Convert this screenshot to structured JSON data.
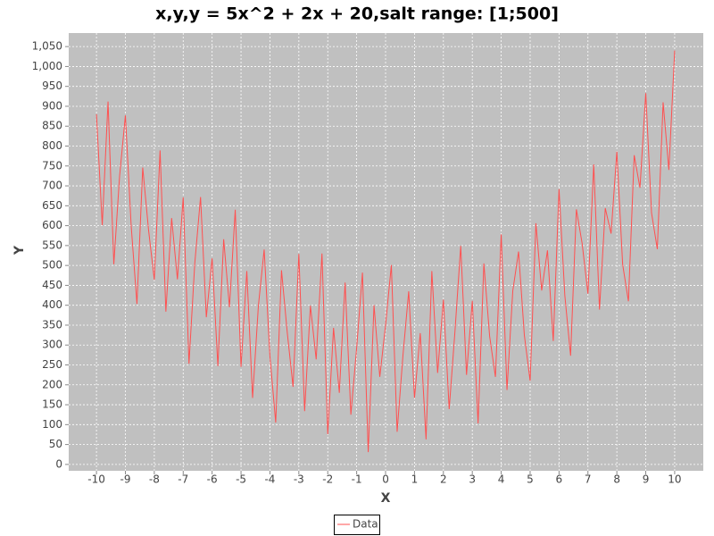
{
  "chart_data": {
    "type": "line",
    "title": "x,y,y = 5x^2 + 2x + 20,salt range: [1;500]",
    "x_label": "X",
    "y_label": "Y",
    "x": [
      -10,
      -9.8,
      -9.6,
      -9.4,
      -9.2,
      -9,
      -8.8,
      -8.6,
      -8.4,
      -8.2,
      -8,
      -7.8,
      -7.6,
      -7.4,
      -7.2,
      -7,
      -6.8,
      -6.6,
      -6.4,
      -6.2,
      -6,
      -5.8,
      -5.6,
      -5.4,
      -5.2,
      -5,
      -4.8,
      -4.6,
      -4.4,
      -4.2,
      -4,
      -3.8,
      -3.6,
      -3.4,
      -3.2,
      -3,
      -2.8,
      -2.6,
      -2.4,
      -2.2,
      -2,
      -1.8,
      -1.6,
      -1.4,
      -1.2,
      -1,
      -0.8,
      -0.6,
      -0.4,
      -0.2,
      0,
      0.2,
      0.4,
      0.6,
      0.8,
      1,
      1.2,
      1.4,
      1.6,
      1.8,
      2,
      2.2,
      2.4,
      2.6,
      2.8,
      3,
      3.2,
      3.4,
      3.6,
      3.8,
      4,
      4.2,
      4.4,
      4.6,
      4.8,
      5,
      5.2,
      5.4,
      5.6,
      5.8,
      6,
      6.2,
      6.4,
      6.6,
      6.8,
      7,
      7.2,
      7.4,
      7.6,
      7.8,
      8,
      8.2,
      8.4,
      8.6,
      8.8,
      9,
      9.2,
      9.4,
      9.6,
      9.8,
      10
    ],
    "series": [
      {
        "name": "Data",
        "color": "#ff5050",
        "values": [
          880,
          601,
          912,
          503,
          725,
          877,
          600,
          403,
          746,
          590,
          464,
          789,
          384,
          619,
          465,
          671,
          253,
          505,
          672,
          370,
          518,
          247,
          566,
          395,
          640,
          245,
          486,
          167,
          398,
          540,
          272,
          105,
          488,
          331,
          195,
          529,
          134,
          399,
          264,
          530,
          76,
          343,
          180,
          457,
          125,
          293,
          482,
          31,
          400,
          220,
          350,
          501,
          82,
          273,
          435,
          167,
          330,
          63,
          486,
          230,
          414,
          139,
          334,
          549,
          225,
          411,
          103,
          505,
          322,
          220,
          578,
          187,
          436,
          535,
          325,
          210,
          606,
          437,
          538,
          310,
          692,
          425,
          273,
          641,
          555,
          429,
          754,
          389,
          644,
          580,
          786,
          503,
          410,
          777,
          695,
          933,
          632,
          541,
          910,
          740,
          1040
        ]
      }
    ],
    "xlim": [
      -10.96,
      10.99
    ],
    "ylim": [
      -16,
      1084
    ],
    "xticks": [
      -10,
      -9,
      -8,
      -7,
      -6,
      -5,
      -4,
      -3,
      -2,
      -1,
      0,
      1,
      2,
      3,
      4,
      5,
      6,
      7,
      8,
      9,
      10
    ],
    "yticks": [
      0,
      50,
      100,
      150,
      200,
      250,
      300,
      350,
      400,
      450,
      500,
      550,
      600,
      650,
      700,
      750,
      800,
      850,
      900,
      950,
      {
        "value": 1000,
        "label": "1,000"
      },
      {
        "value": 1050,
        "label": "1,050"
      }
    ],
    "grid": true,
    "legend": "bottom"
  }
}
